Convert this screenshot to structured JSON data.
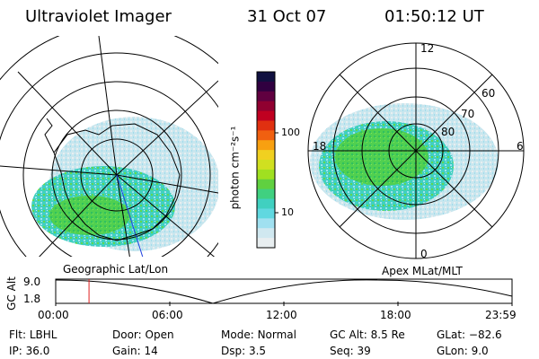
{
  "header": {
    "instrument": "Ultraviolet Imager",
    "date": "31 Oct 07",
    "time": "01:50:12 UT"
  },
  "colorbar": {
    "unit_label": "photon cm⁻²s⁻¹",
    "ticks": [
      "100",
      "10"
    ],
    "colors": [
      "#101040",
      "#300040",
      "#600040",
      "#900030",
      "#c00020",
      "#e03010",
      "#f06010",
      "#f8a010",
      "#f0d020",
      "#d0e020",
      "#a0e020",
      "#60d040",
      "#40d080",
      "#40d0c0",
      "#60d8e0",
      "#a0e0f0",
      "#d0e8f0",
      "#e8eef0"
    ]
  },
  "left_map": {
    "label": "Geographic Lat/Lon"
  },
  "right_map": {
    "label": "Apex MLat/MLT",
    "mlt_labels": {
      "top": "12",
      "left": "18",
      "right": "6",
      "bottom": "0"
    },
    "lat_labels": [
      "60",
      "70",
      "80"
    ]
  },
  "altitude_strip": {
    "axis_label": "GC Alt",
    "y_ticks": [
      "9.0",
      "1.8"
    ],
    "x_ticks": [
      "00:00",
      "06:00",
      "12:00",
      "18:00",
      "23:59"
    ],
    "marker_fraction": 0.073,
    "marker_color": "#e02020"
  },
  "status": {
    "filter_label": "Flt:",
    "filter_value": "LBHL",
    "door_label": "Door:",
    "door_value": "Open",
    "mode_label": "Mode:",
    "mode_value": "Normal",
    "gcalt_label": "GC Alt:",
    "gcalt_value": "8.5 Re",
    "glat_label": "GLat:",
    "glat_value": "−82.6",
    "ip_label": "IP:",
    "ip_value": "36.0",
    "gain_label": "Gain:",
    "gain_value": "14",
    "dsp_label": "Dsp:",
    "dsp_value": "3.5",
    "seq_label": "Seq:",
    "seq_value": "39",
    "glon_label": "GLon:",
    "glon_value": "9.0"
  }
}
